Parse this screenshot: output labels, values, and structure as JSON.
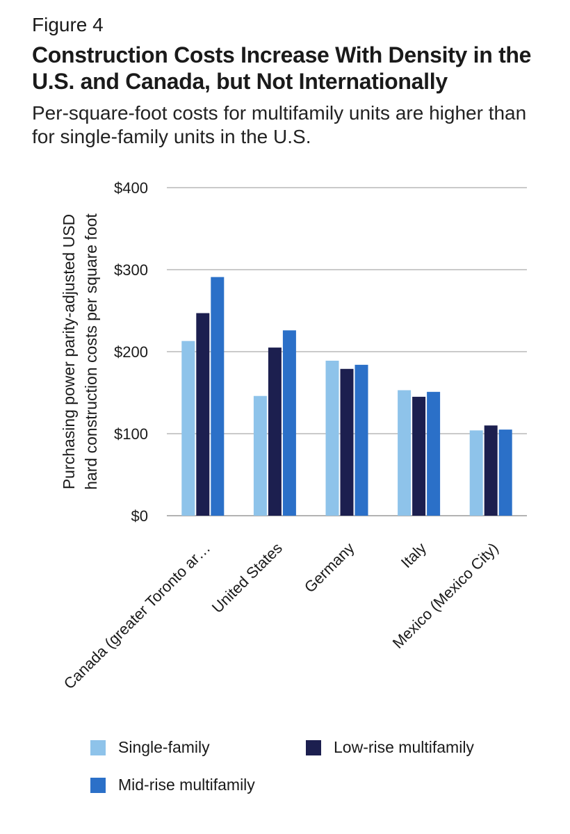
{
  "figure_label": "Figure 4",
  "chart_data": {
    "type": "bar",
    "title": "Construction Costs Increase With Density in the U.S. and Canada, but Not Internationally",
    "subtitle": "Per-square-foot costs for multifamily units are higher than for single-family units in the U.S.",
    "ylabel_lines": [
      "Purchasing power parity-adjusted USD",
      "hard construction costs per square foot"
    ],
    "xlabel": "",
    "ylim": [
      0,
      400
    ],
    "yticks": [
      {
        "value": 0,
        "label": "$0"
      },
      {
        "value": 100,
        "label": "$100"
      },
      {
        "value": 200,
        "label": "$200"
      },
      {
        "value": 300,
        "label": "$300"
      },
      {
        "value": 400,
        "label": "$400"
      }
    ],
    "grid": true,
    "legend_position": "bottom",
    "categories": [
      "Canada (greater Toronto ar…",
      "United States",
      "Germany",
      "Italy",
      "Mexico (Mexico City)"
    ],
    "series": [
      {
        "name": "Single-family",
        "color": "#8ec3ea",
        "values": [
          213,
          146,
          189,
          153,
          104
        ]
      },
      {
        "name": "Low-rise multifamily",
        "color": "#1c1f4f",
        "values": [
          247,
          205,
          179,
          145,
          110
        ]
      },
      {
        "name": "Mid-rise multifamily",
        "color": "#2b70c8",
        "values": [
          291,
          226,
          184,
          151,
          105
        ]
      }
    ]
  }
}
